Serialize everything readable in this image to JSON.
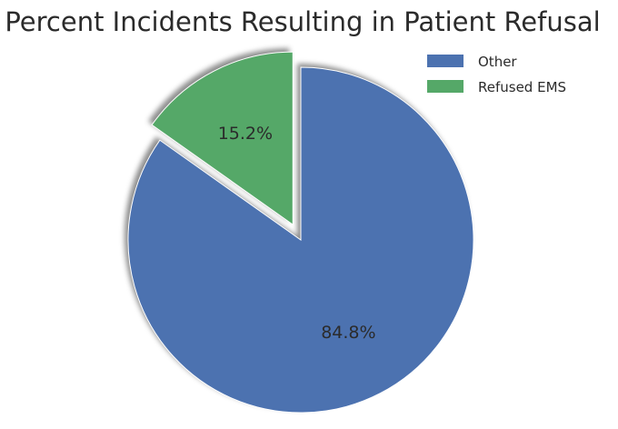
{
  "chart_data": {
    "type": "pie",
    "title": "Percent Incidents Resulting in Patient Refusal",
    "series": [
      {
        "name": "",
        "values": [
          84.8,
          15.2
        ]
      }
    ],
    "categories": [
      "Other",
      "Refused EMS"
    ],
    "colors": [
      "#4c72b0",
      "#55a868"
    ],
    "data_labels": [
      "84.8%",
      "15.2%"
    ],
    "explode": [
      0,
      0.1
    ],
    "shadow": true,
    "legend": {
      "placement": "top-right",
      "entries": [
        "Other",
        "Refused EMS"
      ]
    }
  }
}
